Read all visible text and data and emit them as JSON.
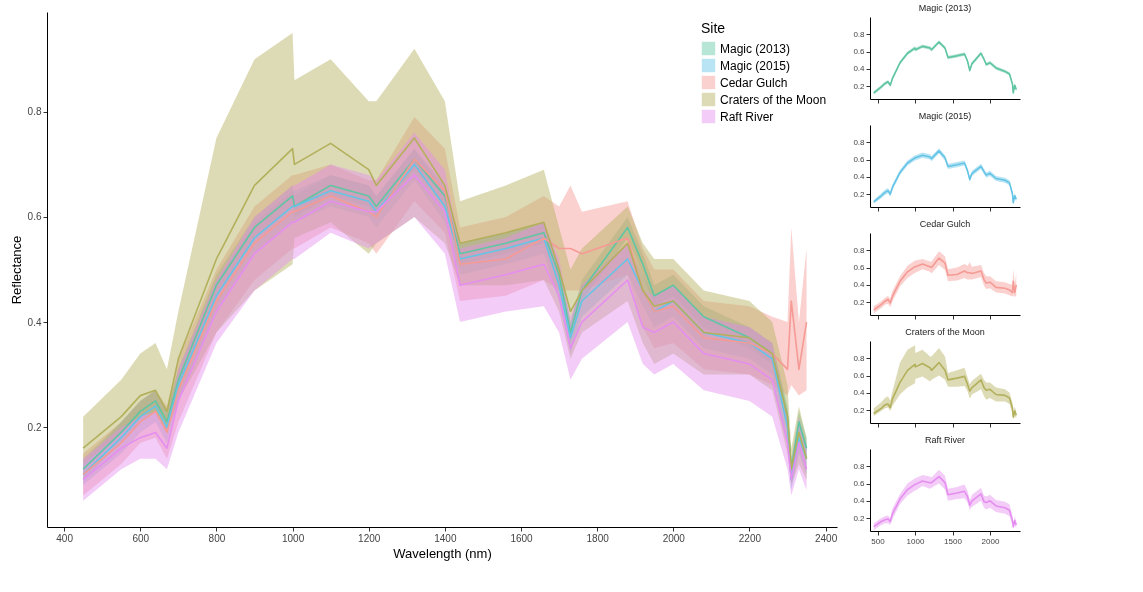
{
  "chart_data": [
    {
      "type": "line",
      "xlabel": "Wavelength (nm)",
      "ylabel": "Reflectance",
      "legend_title": "Site",
      "legend": "top right",
      "xlim": [
        355,
        2430
      ],
      "ylim": [
        0.01,
        0.99
      ],
      "xticks": [
        400,
        600,
        800,
        1000,
        1200,
        1400,
        1600,
        1800,
        2000,
        2200,
        2400
      ],
      "yticks": [
        0.2,
        0.4,
        0.6,
        0.8
      ],
      "x": [
        450,
        550,
        600,
        640,
        670,
        700,
        800,
        900,
        1000,
        1005,
        1100,
        1200,
        1220,
        1320,
        1400,
        1440,
        1560,
        1660,
        1700,
        1730,
        1760,
        1880,
        1920,
        1950,
        2000,
        2080,
        2200,
        2260,
        2300,
        2310,
        2330,
        2350
      ],
      "series": [
        {
          "name": "Magic (2013)",
          "color": "#5fc5a3",
          "values": [
            0.12,
            0.19,
            0.23,
            0.25,
            0.21,
            0.29,
            0.47,
            0.58,
            0.64,
            0.62,
            0.66,
            0.64,
            0.62,
            0.71,
            0.64,
            0.53,
            0.55,
            0.57,
            0.49,
            0.38,
            0.46,
            0.58,
            0.51,
            0.45,
            0.47,
            0.41,
            0.37,
            0.34,
            0.22,
            0.12,
            0.21,
            0.16
          ],
          "lower": [
            0.1,
            0.17,
            0.21,
            0.23,
            0.19,
            0.27,
            0.45,
            0.56,
            0.62,
            0.6,
            0.64,
            0.62,
            0.6,
            0.69,
            0.62,
            0.51,
            0.53,
            0.55,
            0.47,
            0.36,
            0.44,
            0.56,
            0.49,
            0.43,
            0.45,
            0.39,
            0.35,
            0.32,
            0.2,
            0.1,
            0.19,
            0.14
          ],
          "upper": [
            0.14,
            0.21,
            0.25,
            0.27,
            0.23,
            0.31,
            0.49,
            0.6,
            0.66,
            0.64,
            0.68,
            0.66,
            0.64,
            0.73,
            0.66,
            0.55,
            0.57,
            0.59,
            0.51,
            0.4,
            0.48,
            0.6,
            0.53,
            0.47,
            0.49,
            0.43,
            0.39,
            0.36,
            0.24,
            0.14,
            0.23,
            0.18
          ]
        },
        {
          "name": "Magic (2015)",
          "color": "#64c4e6",
          "values": [
            0.11,
            0.18,
            0.22,
            0.24,
            0.2,
            0.28,
            0.45,
            0.56,
            0.62,
            0.62,
            0.65,
            0.63,
            0.61,
            0.7,
            0.62,
            0.52,
            0.54,
            0.56,
            0.47,
            0.37,
            0.44,
            0.52,
            0.46,
            0.42,
            0.44,
            0.38,
            0.36,
            0.33,
            0.2,
            0.1,
            0.18,
            0.14
          ],
          "lower": [
            0.09,
            0.15,
            0.19,
            0.21,
            0.17,
            0.25,
            0.42,
            0.53,
            0.59,
            0.59,
            0.62,
            0.6,
            0.58,
            0.67,
            0.59,
            0.49,
            0.51,
            0.53,
            0.44,
            0.34,
            0.41,
            0.49,
            0.43,
            0.39,
            0.41,
            0.35,
            0.33,
            0.3,
            0.17,
            0.08,
            0.15,
            0.11
          ],
          "upper": [
            0.13,
            0.21,
            0.25,
            0.27,
            0.23,
            0.31,
            0.48,
            0.59,
            0.65,
            0.65,
            0.68,
            0.66,
            0.64,
            0.73,
            0.65,
            0.55,
            0.57,
            0.59,
            0.5,
            0.4,
            0.47,
            0.55,
            0.49,
            0.45,
            0.47,
            0.41,
            0.39,
            0.36,
            0.23,
            0.13,
            0.21,
            0.17
          ]
        },
        {
          "name": "Cedar Gulch",
          "color": "#f59a94",
          "values": [
            0.11,
            0.17,
            0.21,
            0.23,
            0.19,
            0.27,
            0.44,
            0.55,
            0.61,
            0.61,
            0.64,
            0.61,
            0.6,
            0.71,
            0.65,
            0.51,
            0.52,
            0.56,
            0.54,
            0.54,
            0.53,
            0.56,
            0.46,
            0.42,
            0.43,
            0.37,
            0.36,
            0.34,
            0.31,
            0.44,
            0.31,
            0.4
          ],
          "lower": [
            0.07,
            0.13,
            0.17,
            0.18,
            0.14,
            0.21,
            0.38,
            0.48,
            0.54,
            0.54,
            0.58,
            0.55,
            0.53,
            0.63,
            0.57,
            0.44,
            0.45,
            0.48,
            0.46,
            0.46,
            0.46,
            0.49,
            0.39,
            0.35,
            0.36,
            0.31,
            0.3,
            0.28,
            0.26,
            0.28,
            0.26,
            0.27
          ],
          "upper": [
            0.15,
            0.21,
            0.25,
            0.27,
            0.24,
            0.33,
            0.5,
            0.62,
            0.68,
            0.68,
            0.7,
            0.67,
            0.67,
            0.79,
            0.73,
            0.58,
            0.6,
            0.64,
            0.62,
            0.66,
            0.61,
            0.63,
            0.54,
            0.5,
            0.5,
            0.44,
            0.43,
            0.41,
            0.4,
            0.58,
            0.4,
            0.54
          ]
        },
        {
          "name": "Craters of the Moon",
          "color": "#b3b05c",
          "values": [
            0.16,
            0.22,
            0.26,
            0.27,
            0.23,
            0.33,
            0.52,
            0.66,
            0.73,
            0.7,
            0.74,
            0.69,
            0.66,
            0.75,
            0.66,
            0.55,
            0.57,
            0.59,
            0.5,
            0.42,
            0.46,
            0.55,
            0.46,
            0.43,
            0.44,
            0.38,
            0.37,
            0.34,
            0.22,
            0.12,
            0.19,
            0.14
          ],
          "lower": [
            0.13,
            0.19,
            0.22,
            0.23,
            0.19,
            0.25,
            0.38,
            0.46,
            0.51,
            0.56,
            0.59,
            0.53,
            0.55,
            0.6,
            0.55,
            0.47,
            0.47,
            0.48,
            0.42,
            0.33,
            0.38,
            0.44,
            0.36,
            0.32,
            0.34,
            0.3,
            0.3,
            0.27,
            0.15,
            0.09,
            0.13,
            0.1
          ],
          "upper": [
            0.22,
            0.29,
            0.34,
            0.36,
            0.31,
            0.42,
            0.75,
            0.9,
            0.95,
            0.86,
            0.9,
            0.82,
            0.82,
            0.92,
            0.82,
            0.63,
            0.66,
            0.69,
            0.58,
            0.5,
            0.54,
            0.62,
            0.55,
            0.52,
            0.52,
            0.46,
            0.44,
            0.4,
            0.28,
            0.16,
            0.24,
            0.18
          ]
        },
        {
          "name": "Raft River",
          "color": "#e58ef0",
          "values": [
            0.1,
            0.16,
            0.18,
            0.19,
            0.16,
            0.25,
            0.42,
            0.53,
            0.59,
            0.59,
            0.63,
            0.61,
            0.61,
            0.68,
            0.61,
            0.47,
            0.49,
            0.51,
            0.45,
            0.35,
            0.4,
            0.48,
            0.39,
            0.38,
            0.4,
            0.34,
            0.32,
            0.29,
            0.17,
            0.1,
            0.17,
            0.12
          ],
          "lower": [
            0.06,
            0.12,
            0.14,
            0.14,
            0.12,
            0.19,
            0.36,
            0.46,
            0.52,
            0.52,
            0.57,
            0.54,
            0.55,
            0.6,
            0.53,
            0.4,
            0.42,
            0.43,
            0.38,
            0.29,
            0.33,
            0.4,
            0.32,
            0.3,
            0.32,
            0.27,
            0.25,
            0.22,
            0.12,
            0.07,
            0.12,
            0.08
          ],
          "upper": [
            0.14,
            0.2,
            0.22,
            0.23,
            0.2,
            0.31,
            0.48,
            0.6,
            0.66,
            0.66,
            0.7,
            0.68,
            0.67,
            0.76,
            0.69,
            0.54,
            0.56,
            0.59,
            0.52,
            0.41,
            0.47,
            0.55,
            0.46,
            0.45,
            0.47,
            0.41,
            0.39,
            0.36,
            0.22,
            0.13,
            0.22,
            0.16
          ]
        }
      ]
    },
    {
      "type": "line",
      "title": "Magic (2013)",
      "tick_labels": "y",
      "xlim": [
        400,
        2400
      ],
      "ylim": [
        0.05,
        1.0
      ],
      "xticks": [
        500,
        1000,
        1500,
        2000
      ],
      "yticks": [
        0.2,
        0.4,
        0.6,
        0.8
      ],
      "x": [
        450,
        550,
        600,
        640,
        670,
        700,
        800,
        900,
        1000,
        1005,
        1100,
        1200,
        1220,
        1320,
        1400,
        1440,
        1560,
        1660,
        1700,
        1730,
        1760,
        1880,
        1920,
        1950,
        2000,
        2080,
        2200,
        2260,
        2300,
        2310,
        2330,
        2350
      ],
      "series": [
        {
          "color": "#5fc5a3",
          "values": [
            0.12,
            0.19,
            0.23,
            0.25,
            0.21,
            0.29,
            0.47,
            0.58,
            0.64,
            0.62,
            0.66,
            0.64,
            0.62,
            0.71,
            0.64,
            0.53,
            0.55,
            0.57,
            0.49,
            0.38,
            0.46,
            0.58,
            0.51,
            0.45,
            0.47,
            0.41,
            0.37,
            0.34,
            0.22,
            0.12,
            0.21,
            0.16
          ],
          "lower": [
            0.1,
            0.17,
            0.21,
            0.23,
            0.19,
            0.27,
            0.45,
            0.56,
            0.62,
            0.6,
            0.64,
            0.62,
            0.6,
            0.69,
            0.62,
            0.51,
            0.53,
            0.55,
            0.47,
            0.36,
            0.44,
            0.56,
            0.49,
            0.43,
            0.45,
            0.39,
            0.35,
            0.32,
            0.2,
            0.1,
            0.19,
            0.14
          ],
          "upper": [
            0.14,
            0.21,
            0.25,
            0.27,
            0.23,
            0.31,
            0.49,
            0.6,
            0.66,
            0.64,
            0.68,
            0.66,
            0.64,
            0.73,
            0.66,
            0.55,
            0.57,
            0.59,
            0.51,
            0.4,
            0.48,
            0.6,
            0.53,
            0.47,
            0.49,
            0.43,
            0.39,
            0.36,
            0.24,
            0.14,
            0.23,
            0.18
          ]
        }
      ]
    },
    {
      "type": "line",
      "title": "Magic (2015)",
      "tick_labels": "y",
      "xlim": [
        400,
        2400
      ],
      "ylim": [
        0.05,
        1.0
      ],
      "xticks": [
        500,
        1000,
        1500,
        2000
      ],
      "yticks": [
        0.2,
        0.4,
        0.6,
        0.8
      ],
      "x": [
        450,
        550,
        600,
        640,
        670,
        700,
        800,
        900,
        1000,
        1005,
        1100,
        1200,
        1220,
        1320,
        1400,
        1440,
        1560,
        1660,
        1700,
        1730,
        1760,
        1880,
        1920,
        1950,
        2000,
        2080,
        2200,
        2260,
        2300,
        2310,
        2330,
        2350
      ],
      "series": [
        {
          "color": "#64c4e6",
          "values": [
            0.11,
            0.18,
            0.22,
            0.24,
            0.2,
            0.28,
            0.45,
            0.56,
            0.62,
            0.62,
            0.65,
            0.63,
            0.61,
            0.7,
            0.62,
            0.52,
            0.54,
            0.56,
            0.47,
            0.37,
            0.44,
            0.52,
            0.46,
            0.42,
            0.44,
            0.38,
            0.36,
            0.33,
            0.2,
            0.1,
            0.18,
            0.14
          ],
          "lower": [
            0.09,
            0.15,
            0.19,
            0.21,
            0.17,
            0.25,
            0.42,
            0.53,
            0.59,
            0.59,
            0.62,
            0.6,
            0.58,
            0.67,
            0.59,
            0.49,
            0.51,
            0.53,
            0.44,
            0.34,
            0.41,
            0.49,
            0.43,
            0.39,
            0.41,
            0.35,
            0.33,
            0.3,
            0.17,
            0.08,
            0.15,
            0.11
          ],
          "upper": [
            0.13,
            0.21,
            0.25,
            0.27,
            0.23,
            0.31,
            0.48,
            0.59,
            0.65,
            0.65,
            0.68,
            0.66,
            0.64,
            0.73,
            0.65,
            0.55,
            0.57,
            0.59,
            0.5,
            0.4,
            0.47,
            0.55,
            0.49,
            0.45,
            0.47,
            0.41,
            0.39,
            0.36,
            0.23,
            0.13,
            0.21,
            0.17
          ]
        }
      ]
    },
    {
      "type": "line",
      "title": "Cedar Gulch",
      "tick_labels": "y",
      "xlim": [
        400,
        2400
      ],
      "ylim": [
        0.05,
        1.0
      ],
      "xticks": [
        500,
        1000,
        1500,
        2000
      ],
      "yticks": [
        0.2,
        0.4,
        0.6,
        0.8
      ],
      "x": [
        450,
        550,
        600,
        640,
        670,
        700,
        800,
        900,
        1000,
        1005,
        1100,
        1200,
        1220,
        1320,
        1400,
        1440,
        1560,
        1660,
        1700,
        1730,
        1760,
        1880,
        1920,
        1950,
        2000,
        2080,
        2200,
        2260,
        2300,
        2310,
        2330,
        2350
      ],
      "series": [
        {
          "color": "#f59a94",
          "values": [
            0.11,
            0.17,
            0.21,
            0.23,
            0.19,
            0.27,
            0.44,
            0.55,
            0.61,
            0.61,
            0.64,
            0.61,
            0.6,
            0.71,
            0.65,
            0.51,
            0.52,
            0.56,
            0.54,
            0.54,
            0.53,
            0.56,
            0.46,
            0.42,
            0.43,
            0.37,
            0.36,
            0.34,
            0.31,
            0.44,
            0.31,
            0.4
          ],
          "lower": [
            0.07,
            0.13,
            0.17,
            0.18,
            0.14,
            0.21,
            0.38,
            0.48,
            0.54,
            0.54,
            0.58,
            0.55,
            0.53,
            0.63,
            0.57,
            0.44,
            0.45,
            0.48,
            0.46,
            0.46,
            0.46,
            0.49,
            0.39,
            0.35,
            0.36,
            0.31,
            0.3,
            0.28,
            0.26,
            0.28,
            0.26,
            0.27
          ],
          "upper": [
            0.15,
            0.21,
            0.25,
            0.27,
            0.24,
            0.33,
            0.5,
            0.62,
            0.68,
            0.68,
            0.7,
            0.67,
            0.67,
            0.79,
            0.73,
            0.58,
            0.6,
            0.64,
            0.62,
            0.66,
            0.61,
            0.63,
            0.54,
            0.5,
            0.5,
            0.44,
            0.43,
            0.41,
            0.4,
            0.58,
            0.4,
            0.54
          ]
        }
      ]
    },
    {
      "type": "line",
      "title": "Craters of the Moon",
      "tick_labels": "y",
      "xlim": [
        400,
        2400
      ],
      "ylim": [
        0.05,
        1.0
      ],
      "xticks": [
        500,
        1000,
        1500,
        2000
      ],
      "yticks": [
        0.2,
        0.4,
        0.6,
        0.8
      ],
      "x": [
        450,
        550,
        600,
        640,
        670,
        700,
        800,
        900,
        1000,
        1005,
        1100,
        1200,
        1220,
        1320,
        1400,
        1440,
        1560,
        1660,
        1700,
        1730,
        1760,
        1880,
        1920,
        1950,
        2000,
        2080,
        2200,
        2260,
        2300,
        2310,
        2330,
        2350
      ],
      "series": [
        {
          "color": "#b3b05c",
          "values": [
            0.16,
            0.22,
            0.26,
            0.27,
            0.23,
            0.33,
            0.52,
            0.66,
            0.73,
            0.7,
            0.74,
            0.69,
            0.66,
            0.75,
            0.66,
            0.55,
            0.57,
            0.59,
            0.5,
            0.42,
            0.46,
            0.55,
            0.46,
            0.43,
            0.44,
            0.38,
            0.37,
            0.34,
            0.22,
            0.12,
            0.19,
            0.14
          ],
          "lower": [
            0.13,
            0.19,
            0.22,
            0.23,
            0.19,
            0.25,
            0.38,
            0.46,
            0.51,
            0.56,
            0.59,
            0.53,
            0.55,
            0.6,
            0.55,
            0.47,
            0.47,
            0.48,
            0.42,
            0.33,
            0.38,
            0.44,
            0.36,
            0.32,
            0.34,
            0.3,
            0.3,
            0.27,
            0.15,
            0.09,
            0.13,
            0.1
          ],
          "upper": [
            0.22,
            0.29,
            0.34,
            0.36,
            0.31,
            0.42,
            0.75,
            0.9,
            0.95,
            0.86,
            0.9,
            0.82,
            0.82,
            0.92,
            0.82,
            0.63,
            0.66,
            0.69,
            0.58,
            0.5,
            0.54,
            0.62,
            0.55,
            0.52,
            0.52,
            0.46,
            0.44,
            0.4,
            0.28,
            0.16,
            0.24,
            0.18
          ]
        }
      ]
    },
    {
      "type": "line",
      "title": "Raft River",
      "xlim": [
        400,
        2400
      ],
      "ylim": [
        0.05,
        1.0
      ],
      "xticks": [
        500,
        1000,
        1500,
        2000
      ],
      "yticks": [
        0.2,
        0.4,
        0.6,
        0.8
      ],
      "x": [
        450,
        550,
        600,
        640,
        670,
        700,
        800,
        900,
        1000,
        1005,
        1100,
        1200,
        1220,
        1320,
        1400,
        1440,
        1560,
        1660,
        1700,
        1730,
        1760,
        1880,
        1920,
        1950,
        2000,
        2080,
        2200,
        2260,
        2300,
        2310,
        2330,
        2350
      ],
      "series": [
        {
          "color": "#e58ef0",
          "values": [
            0.1,
            0.16,
            0.18,
            0.19,
            0.16,
            0.25,
            0.42,
            0.53,
            0.59,
            0.59,
            0.63,
            0.61,
            0.61,
            0.68,
            0.61,
            0.47,
            0.49,
            0.51,
            0.45,
            0.35,
            0.4,
            0.48,
            0.39,
            0.38,
            0.4,
            0.34,
            0.32,
            0.29,
            0.17,
            0.1,
            0.17,
            0.12
          ],
          "lower": [
            0.06,
            0.12,
            0.14,
            0.14,
            0.12,
            0.19,
            0.36,
            0.46,
            0.52,
            0.52,
            0.57,
            0.54,
            0.55,
            0.6,
            0.53,
            0.4,
            0.42,
            0.43,
            0.38,
            0.29,
            0.33,
            0.4,
            0.32,
            0.3,
            0.32,
            0.27,
            0.25,
            0.22,
            0.12,
            0.07,
            0.12,
            0.08
          ],
          "upper": [
            0.14,
            0.2,
            0.22,
            0.23,
            0.2,
            0.31,
            0.48,
            0.6,
            0.66,
            0.66,
            0.7,
            0.68,
            0.67,
            0.76,
            0.69,
            0.54,
            0.56,
            0.59,
            0.52,
            0.41,
            0.47,
            0.55,
            0.46,
            0.45,
            0.47,
            0.41,
            0.39,
            0.36,
            0.22,
            0.13,
            0.22,
            0.16
          ]
        }
      ]
    }
  ]
}
